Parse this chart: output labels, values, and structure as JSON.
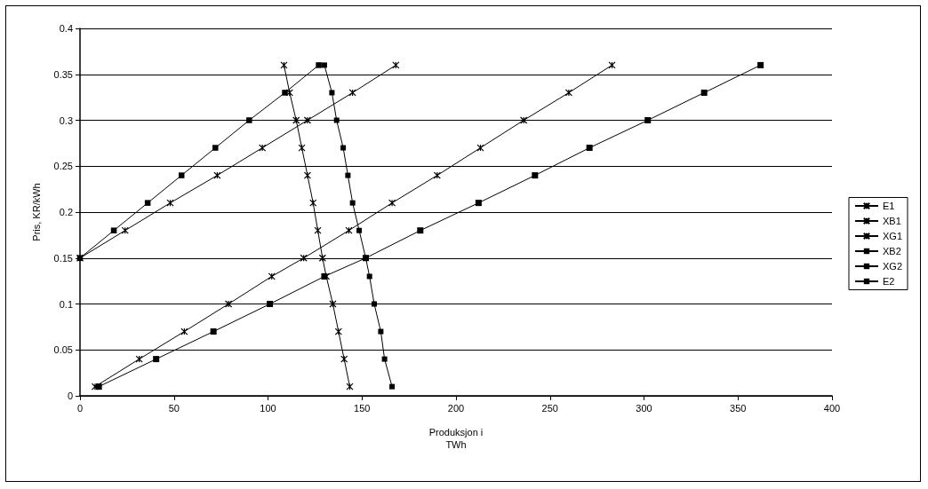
{
  "chart_data": {
    "type": "line",
    "xlabel": "Produksjon i\nTWh",
    "ylabel": "Pris, KR/kWh",
    "xlim": [
      0,
      400
    ],
    "xticks": [
      0,
      50,
      100,
      150,
      200,
      250,
      300,
      350,
      400
    ],
    "ylim": [
      0,
      0.4
    ],
    "yticks": [
      0,
      0.05,
      0.1,
      0.15,
      0.2,
      0.25,
      0.3,
      0.35,
      0.4
    ],
    "grid": "y",
    "legend": "right",
    "line_style": "solid",
    "series": [
      {
        "name": "E1",
        "color": "#000000",
        "marker": "cross",
        "x": [
          143.5,
          140.5,
          137.5,
          134.5,
          131,
          129,
          126.5,
          124,
          121,
          118,
          115,
          111.5,
          108.5
        ],
        "values": [
          0.01,
          0.04,
          0.07,
          0.1,
          0.13,
          0.15,
          0.18,
          0.21,
          0.24,
          0.27,
          0.3,
          0.33,
          0.36
        ]
      },
      {
        "name": "XB1",
        "color": "#000000",
        "marker": "cross",
        "x": [
          8,
          31.5,
          55.5,
          79,
          102,
          119,
          143,
          166,
          190,
          213,
          236,
          260,
          283
        ],
        "values": [
          0.01,
          0.04,
          0.07,
          0.1,
          0.13,
          0.15,
          0.18,
          0.21,
          0.24,
          0.27,
          0.3,
          0.33,
          0.36
        ]
      },
      {
        "name": "XG1",
        "color": "#000000",
        "marker": "cross",
        "x": [
          0,
          24,
          48,
          73,
          97,
          121,
          145,
          168
        ],
        "values": [
          0.15,
          0.18,
          0.21,
          0.24,
          0.27,
          0.3,
          0.33,
          0.36
        ]
      },
      {
        "name": "XB2",
        "color": "#000000",
        "marker": "square",
        "x": [
          10,
          40.5,
          71,
          101,
          130,
          152,
          181,
          212,
          242,
          271,
          302,
          332,
          362
        ],
        "values": [
          0.01,
          0.04,
          0.07,
          0.1,
          0.13,
          0.15,
          0.18,
          0.21,
          0.24,
          0.27,
          0.3,
          0.33,
          0.36
        ]
      },
      {
        "name": "XG2",
        "color": "#000000",
        "marker": "square",
        "x": [
          0,
          18,
          36,
          54,
          72,
          90,
          109,
          127
        ],
        "values": [
          0.15,
          0.18,
          0.21,
          0.24,
          0.27,
          0.3,
          0.33,
          0.36
        ]
      },
      {
        "name": "E2",
        "color": "#000000",
        "marker": "square",
        "x": [
          166,
          162,
          160,
          156.5,
          154,
          152,
          148.5,
          145,
          142.5,
          140,
          136.5,
          134,
          130
        ],
        "values": [
          0.01,
          0.04,
          0.07,
          0.1,
          0.13,
          0.15,
          0.18,
          0.21,
          0.24,
          0.27,
          0.3,
          0.33,
          0.36
        ]
      }
    ]
  }
}
